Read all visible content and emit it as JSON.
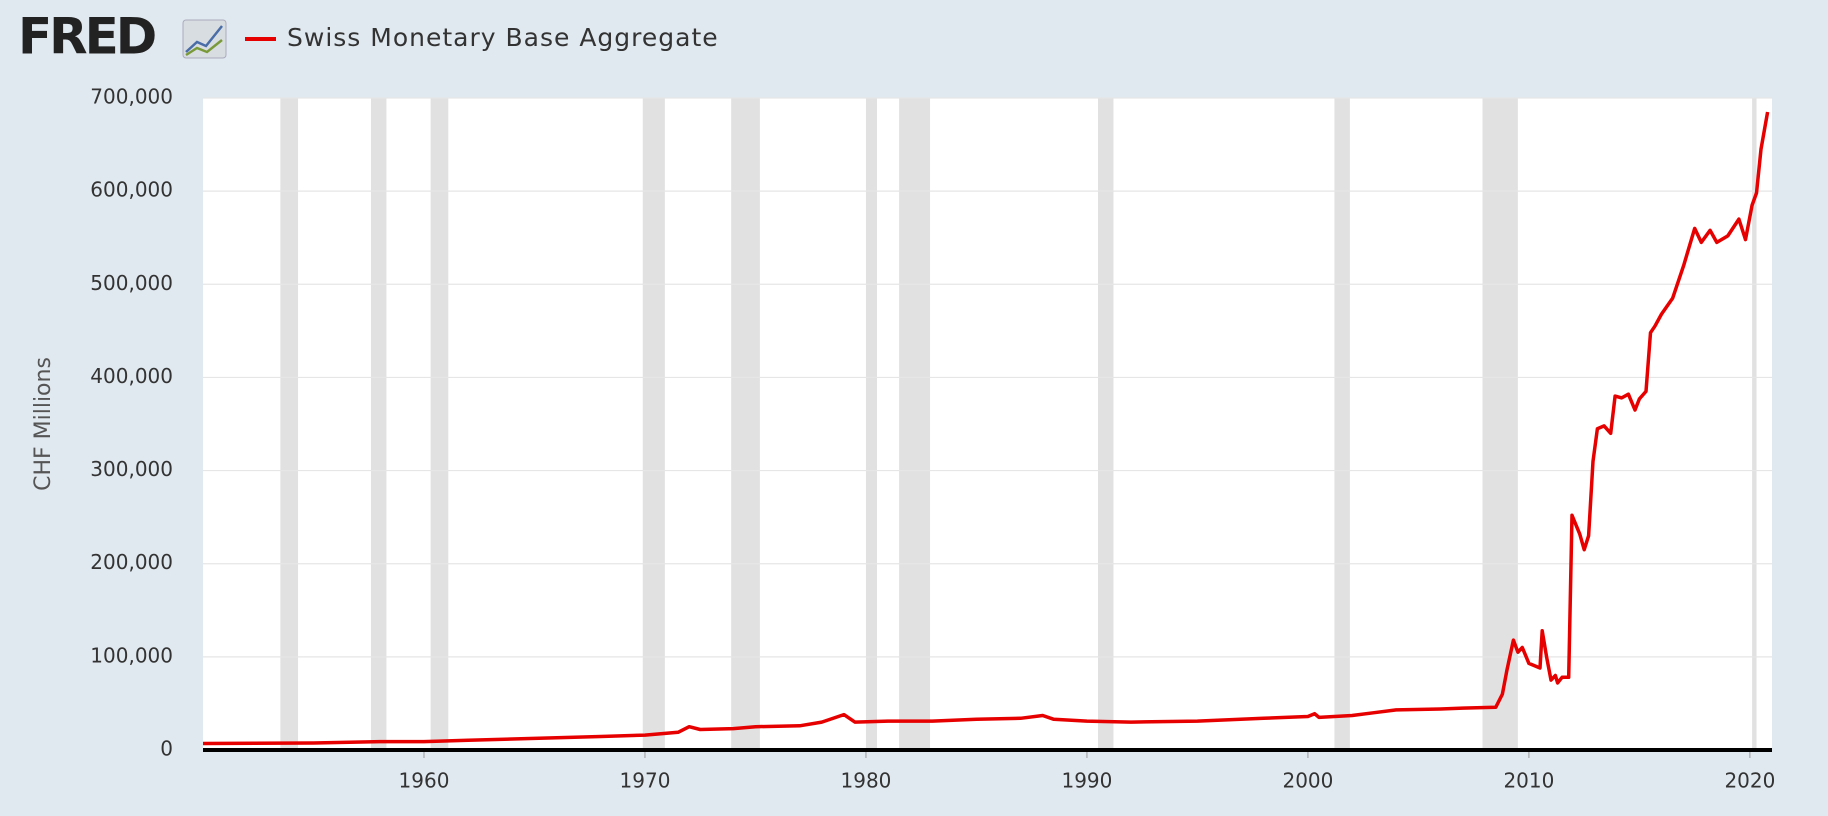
{
  "logo": "FRED",
  "chart_data": {
    "type": "line",
    "legend": "top-left",
    "y_label": "CHF Millions",
    "grid": true,
    "shading_color": "#e1e1e1",
    "shaded_periods": [
      [
        1953.5,
        1954.3
      ],
      [
        1957.6,
        1958.3
      ],
      [
        1960.3,
        1961.1
      ],
      [
        1969.9,
        1970.9
      ],
      [
        1973.9,
        1975.2
      ],
      [
        1980.0,
        1980.5
      ],
      [
        1981.5,
        1982.9
      ],
      [
        1990.5,
        1991.2
      ],
      [
        2001.2,
        2001.9
      ],
      [
        2007.9,
        2009.5
      ],
      [
        2020.1,
        2020.3
      ]
    ],
    "x": [
      1950,
      1955,
      1958,
      1960,
      1962,
      1965,
      1968,
      1970,
      1971.5,
      1972,
      1972.5,
      1974,
      1975,
      1977,
      1978,
      1979,
      1979.5,
      1981,
      1983,
      1985,
      1987,
      1988,
      1988.5,
      1990,
      1992,
      1995,
      1998,
      2000,
      2000.3,
      2000.5,
      2002,
      2003,
      2004,
      2006,
      2007,
      2008.5,
      2008.8,
      2009,
      2009.3,
      2009.5,
      2009.7,
      2010,
      2010.5,
      2010.6,
      2010.8,
      2011,
      2011.2,
      2011.3,
      2011.5,
      2011.8,
      2011.95,
      2012.3,
      2012.5,
      2012.7,
      2012.9,
      2013.1,
      2013.4,
      2013.7,
      2013.9,
      2014.2,
      2014.5,
      2014.8,
      2015,
      2015.3,
      2015.5,
      2015.7,
      2016,
      2016.5,
      2017,
      2017.5,
      2017.8,
      2018.2,
      2018.5,
      2019,
      2019.5,
      2019.8,
      2020.1,
      2020.3,
      2020.5,
      2020.8
    ],
    "series": [
      {
        "name": "Swiss Monetary Base Aggregate",
        "color": "#e60000",
        "values": [
          7000,
          7500,
          9000,
          9000,
          10500,
          12500,
          14500,
          16000,
          19000,
          25000,
          22000,
          23000,
          25000,
          26000,
          30000,
          38000,
          30000,
          31000,
          31000,
          33000,
          34000,
          37000,
          33000,
          31000,
          30000,
          31000,
          34000,
          36000,
          39000,
          35000,
          37000,
          40000,
          43000,
          44000,
          45000,
          46000,
          60000,
          85000,
          118000,
          105000,
          110000,
          93000,
          88000,
          128000,
          100000,
          75000,
          80000,
          72000,
          78000,
          78000,
          252000,
          232000,
          215000,
          230000,
          310000,
          345000,
          348000,
          340000,
          380000,
          378000,
          382000,
          365000,
          377000,
          385000,
          448000,
          455000,
          468000,
          485000,
          520000,
          560000,
          545000,
          558000,
          545000,
          552000,
          570000,
          548000,
          585000,
          598000,
          645000,
          685000
        ]
      }
    ],
    "xlim": [
      1950,
      2021
    ],
    "xticks": [
      1960,
      1970,
      1980,
      1990,
      2000,
      2010,
      2020
    ],
    "ylim": [
      0,
      700000
    ],
    "yticks": [
      0,
      {
        "value": 100000,
        "label": "100,000"
      },
      {
        "value": 200000,
        "label": "200,000"
      },
      {
        "value": 300000,
        "label": "300,000"
      },
      {
        "value": 400000,
        "label": "400,000"
      },
      {
        "value": 500000,
        "label": "500,000"
      },
      {
        "value": 600000,
        "label": "600,000"
      },
      {
        "value": 700000,
        "label": "700,000"
      }
    ]
  }
}
